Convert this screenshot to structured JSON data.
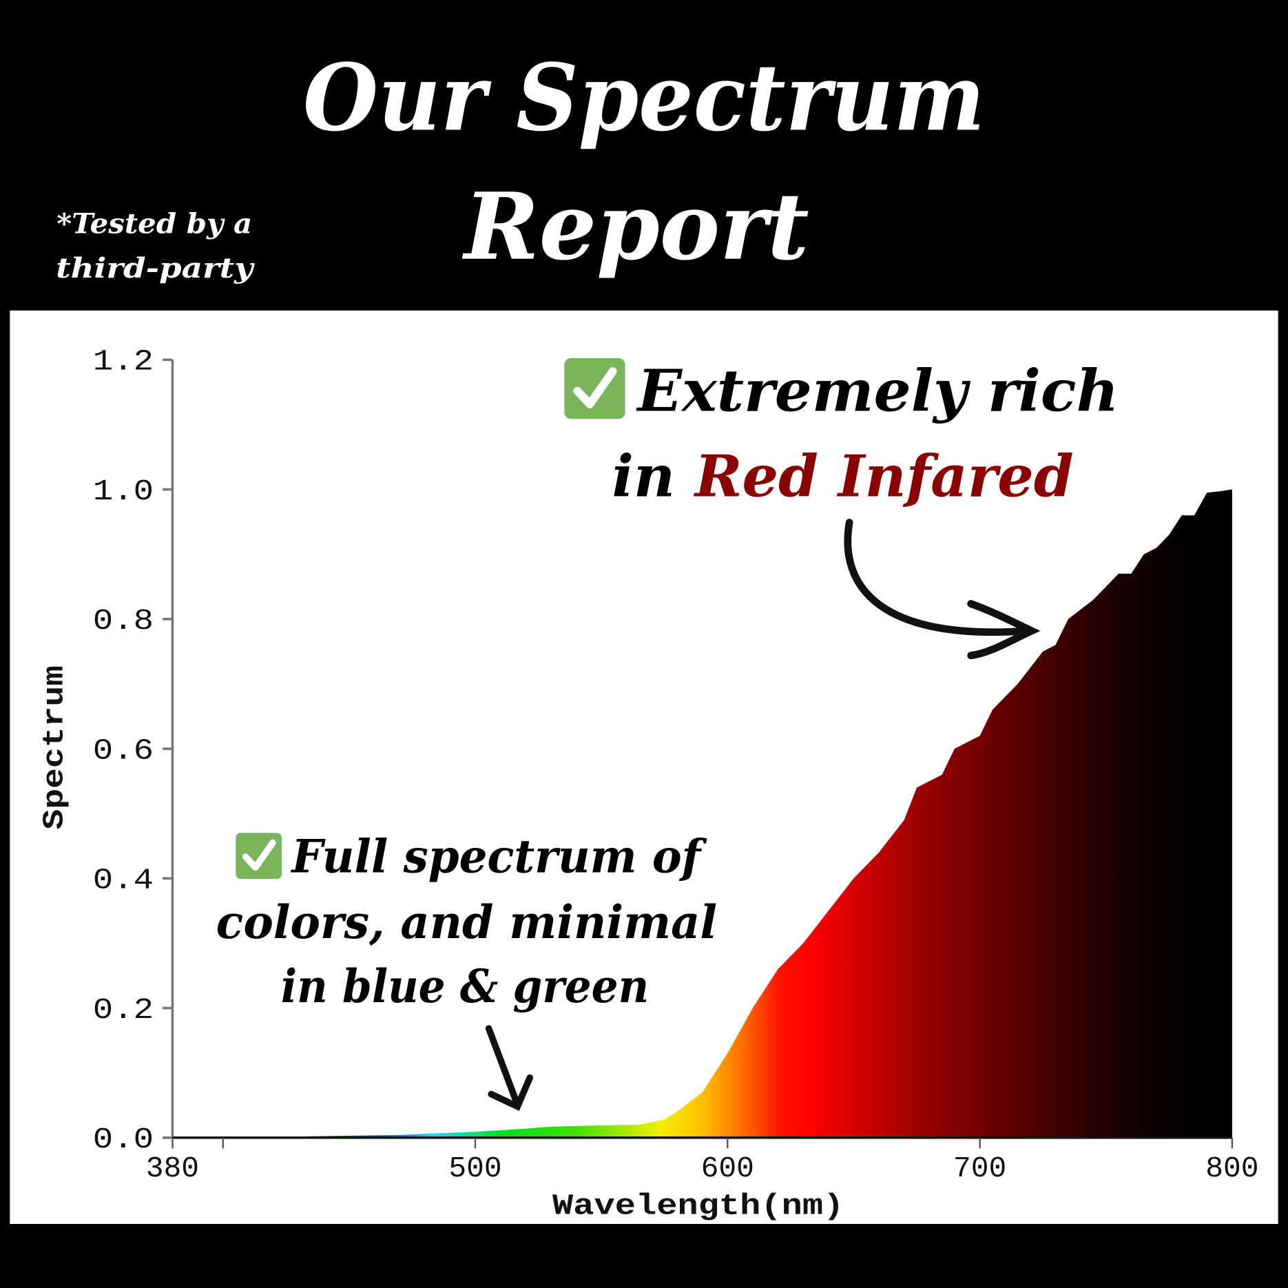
{
  "header": {
    "title_line1": "Our Spectrum",
    "title_line2": "Report",
    "note_line1": "*Tested by a",
    "note_line2": "third-party"
  },
  "annotations": {
    "red": {
      "icon": "check-box-icon",
      "line1": "Extremely rich",
      "line2_prefix": "in ",
      "line2_highlight": "Red Infared",
      "highlight_color": "#8b0000"
    },
    "full": {
      "icon": "check-box-icon",
      "line1": "Full spectrum of",
      "line2": "colors, and minimal",
      "line3": "in blue & green"
    },
    "check_color": "#7ab55c"
  },
  "chart_data": {
    "type": "area",
    "title": "",
    "xlabel": "Wavelength(nm)",
    "ylabel": "Spectrum",
    "xlim": [
      380,
      800
    ],
    "ylim": [
      0,
      1.2
    ],
    "x_ticks": [
      380,
      500,
      600,
      700,
      800
    ],
    "x_minor_ticks": [
      400
    ],
    "y_ticks": [
      "0.0",
      "0.2",
      "0.4",
      "0.6",
      "0.8",
      "1.0",
      "1.2"
    ],
    "grid": false,
    "fill": "wavelength-colored spectrum",
    "x": [
      380,
      420,
      450,
      470,
      480,
      500,
      520,
      530,
      550,
      565,
      575,
      580,
      590,
      600,
      610,
      620,
      630,
      640,
      650,
      660,
      670,
      675,
      685,
      690,
      700,
      705,
      715,
      725,
      730,
      735,
      745,
      755,
      760,
      765,
      770,
      775,
      780,
      785,
      790,
      795,
      800
    ],
    "y": [
      0,
      0.001,
      0.003,
      0.004,
      0.006,
      0.009,
      0.014,
      0.017,
      0.019,
      0.02,
      0.028,
      0.04,
      0.07,
      0.13,
      0.2,
      0.26,
      0.3,
      0.35,
      0.4,
      0.44,
      0.49,
      0.54,
      0.56,
      0.6,
      0.62,
      0.66,
      0.7,
      0.75,
      0.76,
      0.8,
      0.83,
      0.87,
      0.87,
      0.9,
      0.91,
      0.93,
      0.96,
      0.96,
      0.995,
      0.997,
      1.0
    ]
  }
}
